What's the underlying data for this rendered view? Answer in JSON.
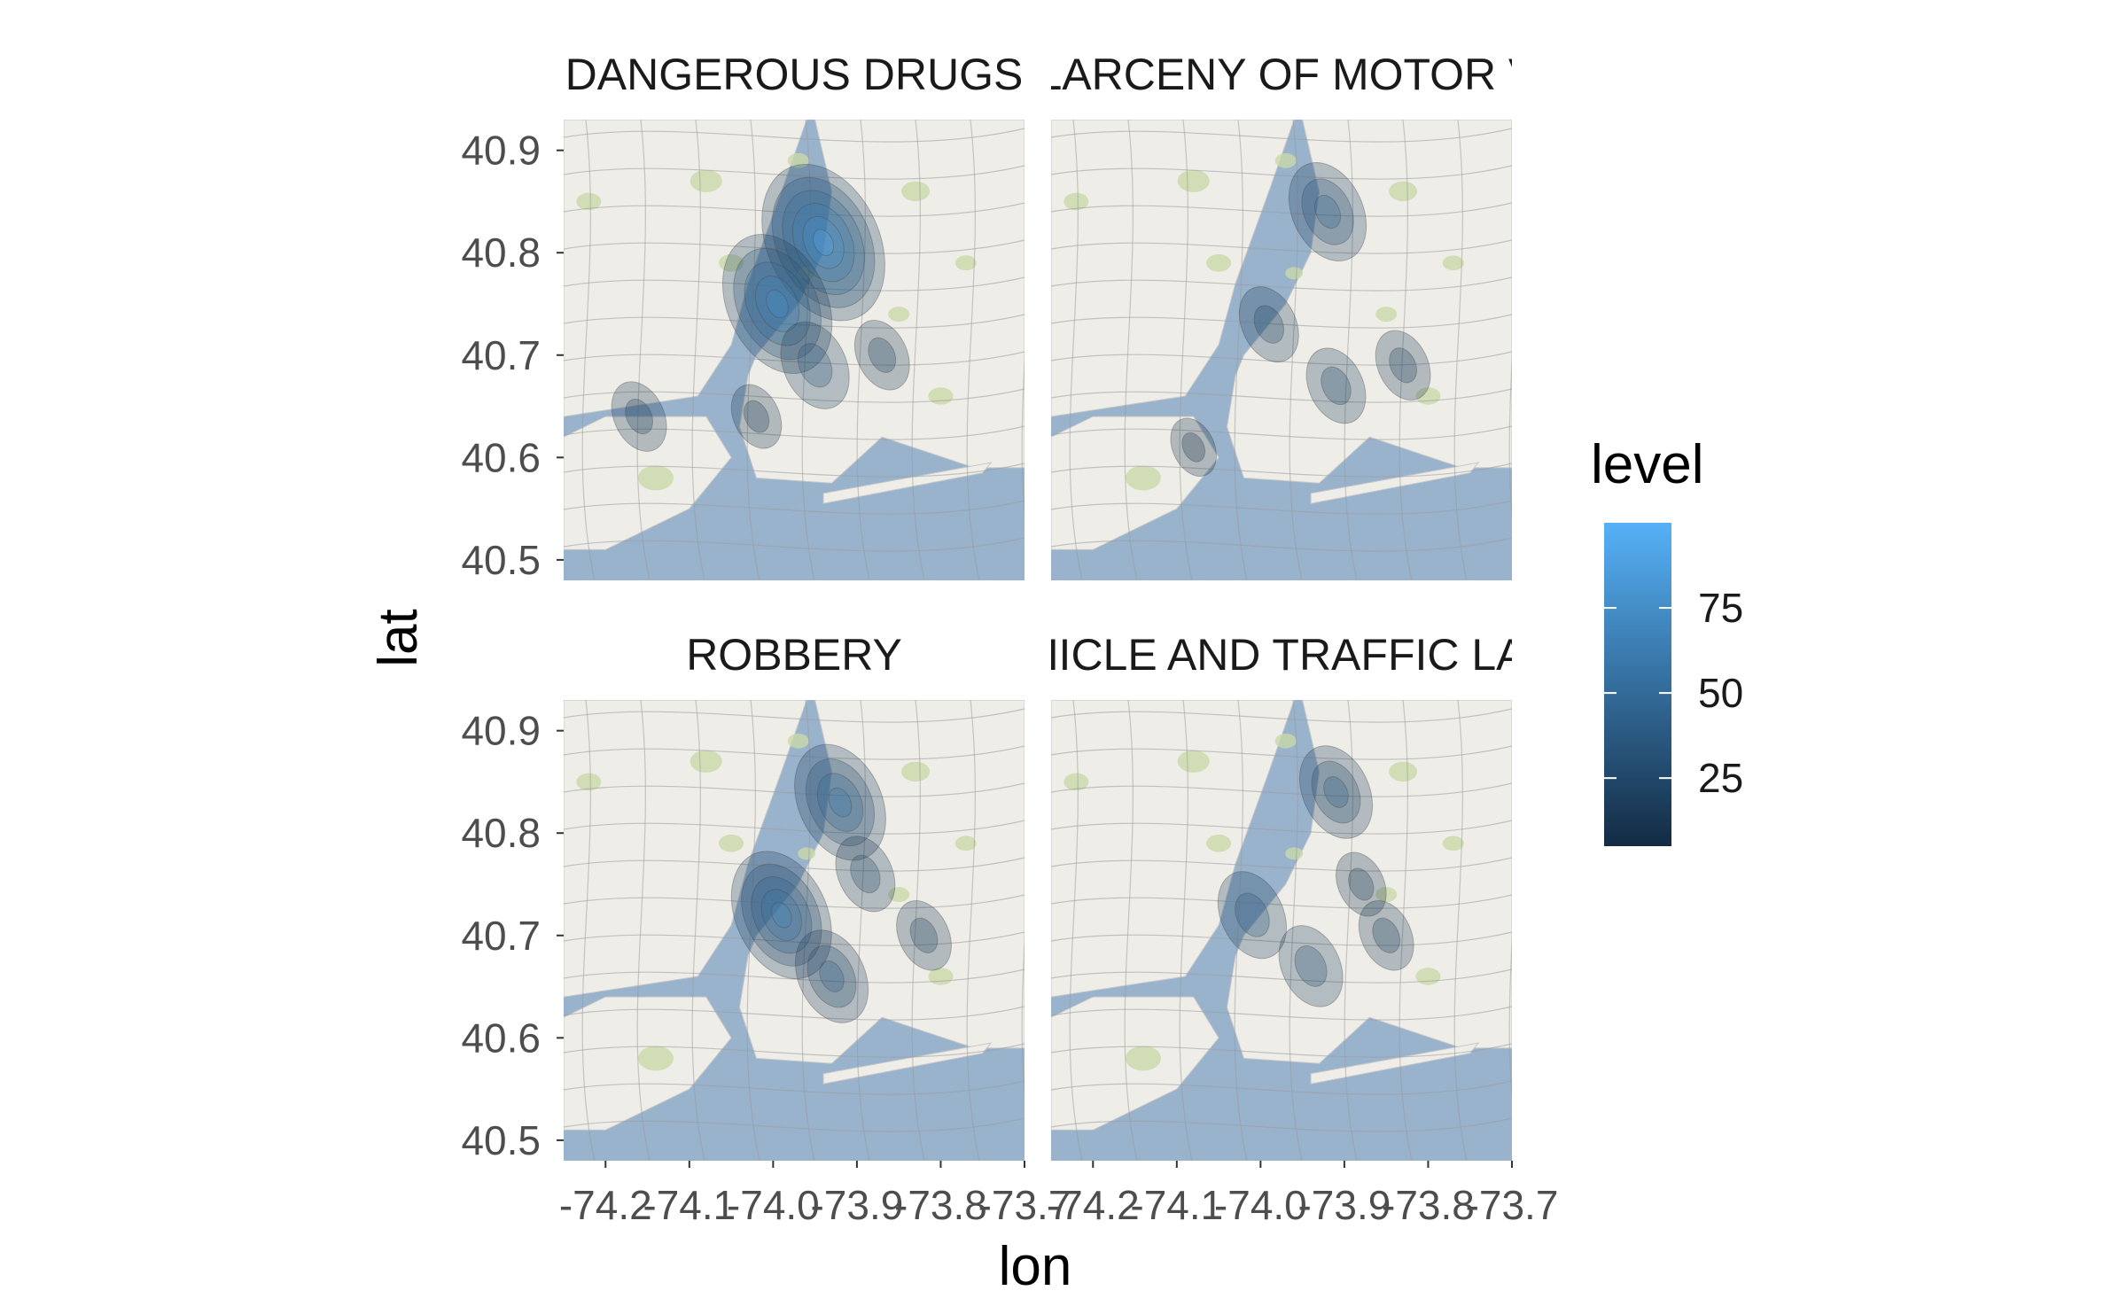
{
  "chart_data": {
    "type": "heatmap",
    "subtype": "faceted 2D density contours over street map",
    "title": "",
    "xlabel": "lon",
    "ylabel": "lat",
    "xlim": [
      -74.25,
      -73.7
    ],
    "ylim": [
      40.48,
      40.93
    ],
    "x_ticks": [
      -74.2,
      -74.1,
      -74.0,
      -73.9,
      -73.8,
      -73.7
    ],
    "x_tick_labels": [
      "-74.2",
      "-74.1",
      "-74.0",
      "-73.9",
      "-73.8",
      "-73.7"
    ],
    "y_ticks": [
      40.5,
      40.6,
      40.7,
      40.8,
      40.9
    ],
    "y_tick_labels": [
      "40.5",
      "40.6",
      "40.7",
      "40.8",
      "40.9"
    ],
    "grid": false,
    "legend": {
      "title": "level",
      "position": "right",
      "range": [
        5,
        100
      ],
      "breaks": [
        25,
        50,
        75
      ],
      "break_labels": [
        "25",
        "50",
        "75"
      ],
      "low_color": "#132B43",
      "high_color": "#56B1F7"
    },
    "facets": [
      {
        "label": "DANGEROUS DRUGS",
        "hotspots": [
          {
            "lon": -73.94,
            "lat": 40.81,
            "level": 95
          },
          {
            "lon": -73.995,
            "lat": 40.75,
            "level": 80
          },
          {
            "lon": -73.95,
            "lat": 40.69,
            "level": 35
          },
          {
            "lon": -73.87,
            "lat": 40.7,
            "level": 20
          },
          {
            "lon": -74.16,
            "lat": 40.64,
            "level": 20
          },
          {
            "lon": -74.02,
            "lat": 40.64,
            "level": 15
          }
        ]
      },
      {
        "label": "GRAND LARCENY OF MOTOR VEHICLE",
        "hotspots": [
          {
            "lon": -73.92,
            "lat": 40.84,
            "level": 45
          },
          {
            "lon": -73.99,
            "lat": 40.73,
            "level": 25
          },
          {
            "lon": -73.91,
            "lat": 40.67,
            "level": 25
          },
          {
            "lon": -73.83,
            "lat": 40.69,
            "level": 20
          },
          {
            "lon": -74.08,
            "lat": 40.61,
            "level": 10
          }
        ]
      },
      {
        "label": "ROBBERY",
        "hotspots": [
          {
            "lon": -73.92,
            "lat": 40.83,
            "level": 60
          },
          {
            "lon": -73.99,
            "lat": 40.72,
            "level": 70
          },
          {
            "lon": -73.93,
            "lat": 40.66,
            "level": 40
          },
          {
            "lon": -73.89,
            "lat": 40.76,
            "level": 25
          },
          {
            "lon": -73.82,
            "lat": 40.7,
            "level": 20
          }
        ]
      },
      {
        "label": "VEHICLE AND TRAFFIC LAWS",
        "hotspots": [
          {
            "lon": -73.91,
            "lat": 40.84,
            "level": 40
          },
          {
            "lon": -74.01,
            "lat": 40.72,
            "level": 35
          },
          {
            "lon": -73.94,
            "lat": 40.67,
            "level": 30
          },
          {
            "lon": -73.85,
            "lat": 40.7,
            "level": 20
          },
          {
            "lon": -73.88,
            "lat": 40.75,
            "level": 15
          }
        ]
      }
    ]
  }
}
